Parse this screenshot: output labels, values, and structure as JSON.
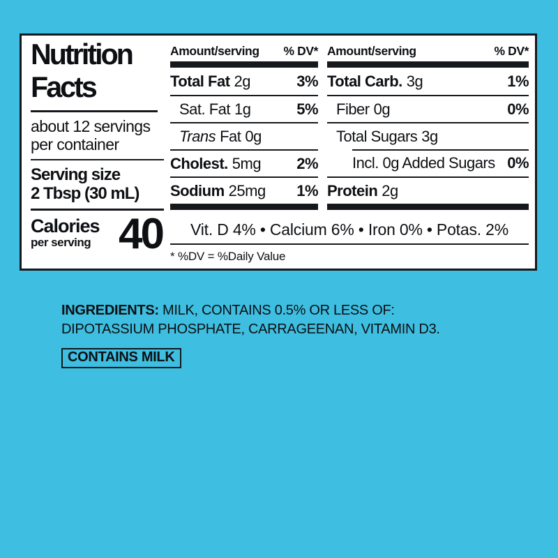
{
  "background_color": "#3EBEE0",
  "label": {
    "title_line1": "Nutrition",
    "title_line2": "Facts",
    "servings_line1": "about 12 servings",
    "servings_line2": "per container",
    "serving_size_label": "Serving size",
    "serving_size_value": "2 Tbsp (30 mL)",
    "calories_label": "Calories",
    "calories_sublabel": "per serving",
    "calories_value": "40",
    "columns": [
      {
        "header_amount": "Amount/serving",
        "header_dv": "% DV*",
        "rows": [
          {
            "name": "Total Fat",
            "value": "2g",
            "dv": "3%"
          },
          {
            "name": "Sat. Fat",
            "value": "1g",
            "dv": "5%"
          },
          {
            "name_italic": "Trans",
            "name": "Fat",
            "value": "0g",
            "dv": ""
          },
          {
            "name": "Cholest.",
            "value": "5mg",
            "dv": "2%"
          },
          {
            "name": "Sodium",
            "value": "25mg",
            "dv": "1%"
          }
        ]
      },
      {
        "header_amount": "Amount/serving",
        "header_dv": "% DV*",
        "rows": [
          {
            "name": "Total Carb.",
            "value": "3g",
            "dv": "1%"
          },
          {
            "name": "Fiber",
            "value": "0g",
            "dv": "0%"
          },
          {
            "name": "Total Sugars",
            "value": "3g",
            "dv": ""
          },
          {
            "name": "Incl. 0g Added Sugars",
            "value": "",
            "dv": "0%"
          },
          {
            "name": "Protein",
            "value": "2g",
            "dv": ""
          }
        ]
      }
    ],
    "micronutrients": "Vit. D 4% • Calcium 6% • Iron 0% • Potas. 2%",
    "footnote": "* %DV = %Daily Value"
  },
  "ingredients": {
    "label": "INGREDIENTS:",
    "text": " MILK, CONTAINS 0.5% OR LESS OF: DIPOTASSIUM PHOSPHATE, CARRAGEENAN, VITAMIN D3.",
    "allergen": "CONTAINS MILK"
  }
}
